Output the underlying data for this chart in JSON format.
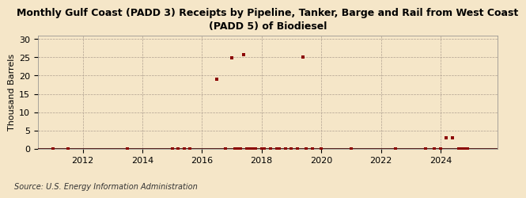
{
  "title": "Monthly Gulf Coast (PADD 3) Receipts by Pipeline, Tanker, Barge and Rail from West Coast\n(PADD 5) of Biodiesel",
  "ylabel": "Thousand Barrels",
  "source": "Source: U.S. Energy Information Administration",
  "background_color": "#f5e6c8",
  "plot_background_color": "#f5e6c8",
  "marker_color": "#8b0000",
  "ylim": [
    0,
    31
  ],
  "yticks": [
    0,
    5,
    10,
    15,
    20,
    25,
    30
  ],
  "xlim_start": 2010.5,
  "xlim_end": 2025.9,
  "xticks": [
    2012,
    2014,
    2016,
    2018,
    2020,
    2022,
    2024
  ],
  "data_points": [
    [
      2011.0,
      0
    ],
    [
      2011.5,
      0
    ],
    [
      2013.5,
      0
    ],
    [
      2015.0,
      0
    ],
    [
      2015.2,
      0
    ],
    [
      2015.4,
      0
    ],
    [
      2015.6,
      0
    ],
    [
      2016.5,
      19.0
    ],
    [
      2016.8,
      0
    ],
    [
      2017.0,
      24.8
    ],
    [
      2017.1,
      0
    ],
    [
      2017.2,
      0
    ],
    [
      2017.3,
      0
    ],
    [
      2017.4,
      25.8
    ],
    [
      2017.5,
      0
    ],
    [
      2017.6,
      0
    ],
    [
      2017.7,
      0
    ],
    [
      2017.8,
      0
    ],
    [
      2018.0,
      0
    ],
    [
      2018.1,
      0
    ],
    [
      2018.3,
      0
    ],
    [
      2018.5,
      0
    ],
    [
      2018.6,
      0
    ],
    [
      2018.8,
      0
    ],
    [
      2019.0,
      0
    ],
    [
      2019.2,
      0
    ],
    [
      2019.4,
      25.0
    ],
    [
      2019.5,
      0
    ],
    [
      2019.7,
      0
    ],
    [
      2020.0,
      0
    ],
    [
      2021.0,
      0
    ],
    [
      2022.5,
      0
    ],
    [
      2023.5,
      0
    ],
    [
      2023.8,
      0
    ],
    [
      2024.0,
      0
    ],
    [
      2024.2,
      3.0
    ],
    [
      2024.4,
      3.0
    ],
    [
      2024.6,
      0
    ],
    [
      2024.7,
      0
    ],
    [
      2024.8,
      0
    ],
    [
      2024.9,
      0
    ]
  ]
}
